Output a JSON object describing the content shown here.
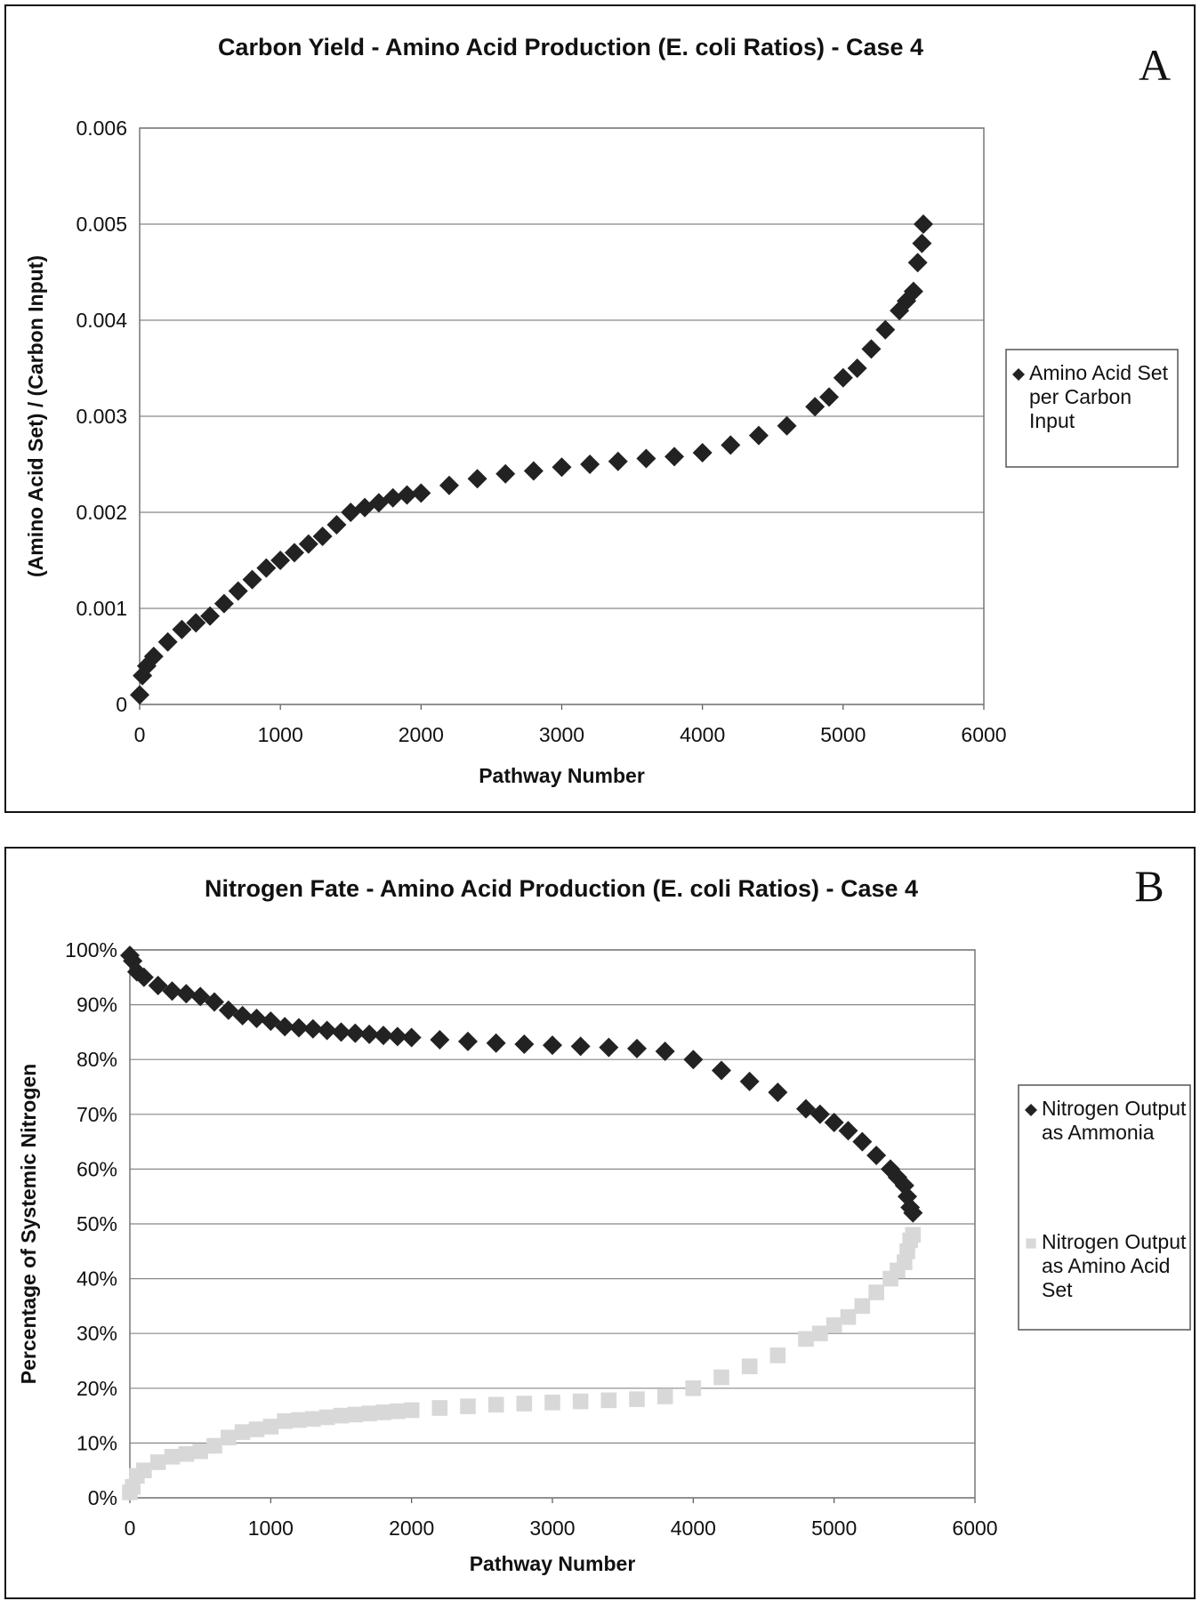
{
  "chart_data": [
    {
      "type": "scatter",
      "title": "Carbon Yield - Amino Acid Production (E. coli Ratios) - Case 4",
      "annotation": "A",
      "x_label": "Pathway Number",
      "y_label": "(Amino Acid Set) / (Carbon Input)",
      "x": [
        0,
        20,
        50,
        100,
        200,
        300,
        400,
        500,
        600,
        700,
        800,
        900,
        1000,
        1100,
        1200,
        1300,
        1400,
        1500,
        1600,
        1700,
        1800,
        1900,
        2000,
        2200,
        2400,
        2600,
        2800,
        3000,
        3200,
        3400,
        3600,
        3800,
        4000,
        4200,
        4400,
        4600,
        4800,
        4900,
        5000,
        5100,
        5200,
        5300,
        5400,
        5450,
        5500,
        5530,
        5560,
        5570
      ],
      "series": [
        {
          "name": "Amino Acid Set per Carbon Input",
          "color": "#222222",
          "marker": "diamond",
          "values": [
            0.0001,
            0.0003,
            0.0004,
            0.0005,
            0.00065,
            0.00078,
            0.00085,
            0.00092,
            0.00105,
            0.00118,
            0.0013,
            0.00142,
            0.0015,
            0.00158,
            0.00167,
            0.00175,
            0.00187,
            0.002,
            0.00205,
            0.0021,
            0.00215,
            0.00218,
            0.0022,
            0.00228,
            0.00235,
            0.0024,
            0.00243,
            0.00247,
            0.0025,
            0.00253,
            0.00256,
            0.00258,
            0.00262,
            0.0027,
            0.0028,
            0.0029,
            0.0031,
            0.0032,
            0.0034,
            0.0035,
            0.0037,
            0.0039,
            0.0041,
            0.0042,
            0.0043,
            0.0046,
            0.0048,
            0.005
          ]
        }
      ],
      "xlim": [
        0,
        6000
      ],
      "xticks": [
        0,
        1000,
        2000,
        3000,
        4000,
        5000,
        6000
      ],
      "ylim": [
        0,
        0.006
      ],
      "yticks": [
        0,
        0.001,
        0.002,
        0.003,
        0.004,
        0.005,
        0.006
      ],
      "grid": true,
      "legend": "right"
    },
    {
      "type": "scatter",
      "title": "Nitrogen Fate - Amino Acid Production (E. coli Ratios) - Case 4",
      "annotation": "B",
      "x_label": "Pathway Number",
      "y_label": "Percentage of Systemic Nitrogen",
      "x": [
        0,
        20,
        50,
        100,
        200,
        300,
        400,
        500,
        600,
        700,
        800,
        900,
        1000,
        1100,
        1200,
        1300,
        1400,
        1500,
        1600,
        1700,
        1800,
        1900,
        2000,
        2200,
        2400,
        2600,
        2800,
        3000,
        3200,
        3400,
        3600,
        3800,
        4000,
        4200,
        4400,
        4600,
        4800,
        4900,
        5000,
        5100,
        5200,
        5300,
        5400,
        5450,
        5500,
        5520,
        5540,
        5560
      ],
      "series": [
        {
          "name": "Nitrogen Output as Ammonia",
          "color": "#222222",
          "marker": "diamond",
          "values": [
            99,
            98,
            96,
            95,
            93.5,
            92.5,
            92,
            91.5,
            90.5,
            89,
            88,
            87.5,
            87,
            86,
            85.8,
            85.6,
            85.3,
            85,
            84.8,
            84.6,
            84.4,
            84.2,
            84,
            83.6,
            83.3,
            83,
            82.8,
            82.6,
            82.4,
            82.2,
            82,
            81.5,
            80,
            78,
            76,
            74,
            71,
            70,
            68.5,
            67,
            65,
            62.5,
            60,
            58.5,
            57,
            55,
            53,
            52
          ]
        },
        {
          "name": "Nitrogen Output as Amino Acid Set",
          "color": "#d8d8d8",
          "marker": "square",
          "values": [
            1,
            2,
            4,
            5,
            6.5,
            7.5,
            8,
            8.5,
            9.5,
            11,
            12,
            12.5,
            13,
            14,
            14.2,
            14.4,
            14.7,
            15,
            15.2,
            15.4,
            15.6,
            15.8,
            16,
            16.4,
            16.7,
            17,
            17.2,
            17.4,
            17.6,
            17.8,
            18,
            18.5,
            20,
            22,
            24,
            26,
            29,
            30,
            31.5,
            33,
            35,
            37.5,
            40,
            41.5,
            43,
            45,
            47,
            48
          ]
        }
      ],
      "xlim": [
        0,
        6000
      ],
      "xticks": [
        0,
        1000,
        2000,
        3000,
        4000,
        5000,
        6000
      ],
      "ylim": [
        0,
        100
      ],
      "yticks": [
        {
          "value": 0,
          "label": "0%"
        },
        {
          "value": 10,
          "label": "10%"
        },
        {
          "value": 20,
          "label": "20%"
        },
        {
          "value": 30,
          "label": "30%"
        },
        {
          "value": 40,
          "label": "40%"
        },
        {
          "value": 50,
          "label": "50%"
        },
        {
          "value": 60,
          "label": "60%"
        },
        {
          "value": 70,
          "label": "70%"
        },
        {
          "value": 80,
          "label": "80%"
        },
        {
          "value": 90,
          "label": "90%"
        },
        {
          "value": 100,
          "label": "100%"
        }
      ],
      "grid": true,
      "legend": "right"
    }
  ]
}
